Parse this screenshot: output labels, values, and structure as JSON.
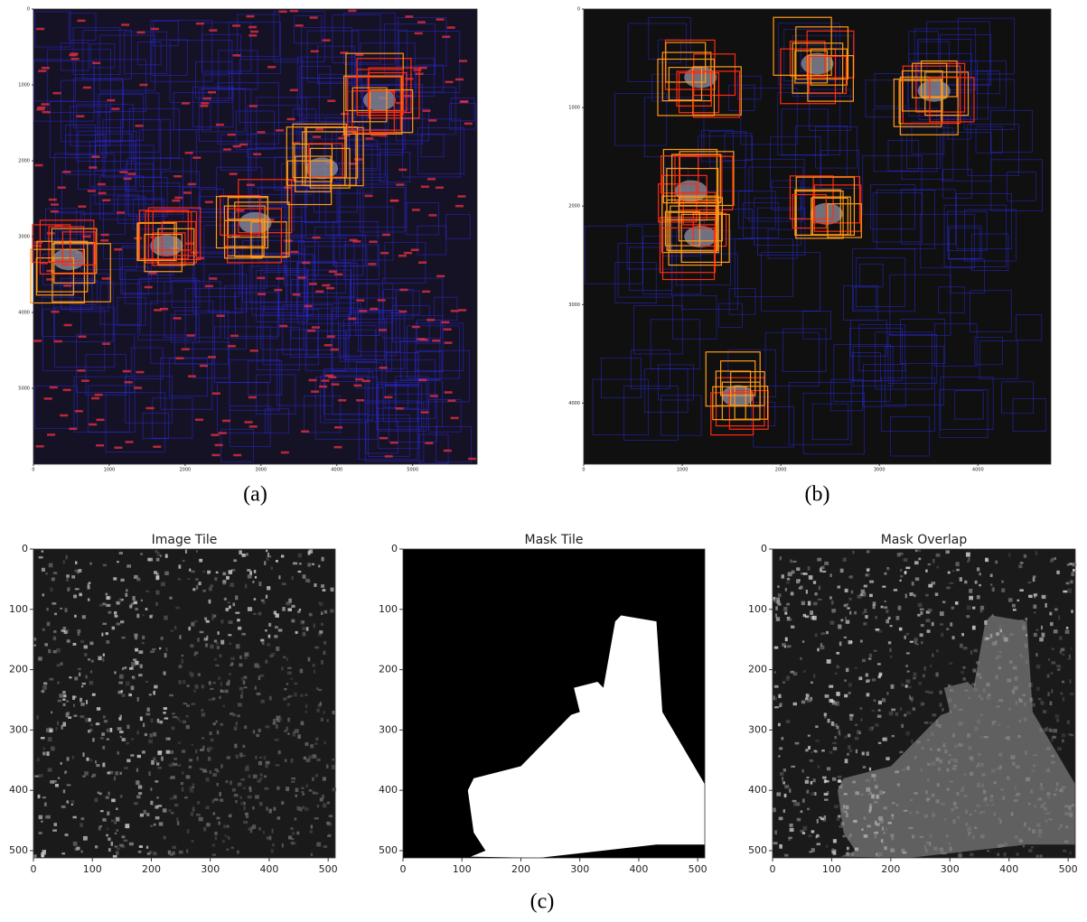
{
  "panels": [
    {
      "label": "(a)",
      "xlim": [
        0,
        5850
      ],
      "ylim": [
        0,
        6000
      ],
      "xticks": [
        0,
        1000,
        2000,
        3000,
        4000,
        5000
      ],
      "yticks": [
        0,
        1000,
        2000,
        3000,
        4000,
        5000
      ]
    },
    {
      "label": "(b)",
      "xlim": [
        0,
        4740
      ],
      "ylim": [
        0,
        4620
      ],
      "xticks": [
        0,
        1000,
        2000,
        3000,
        4000
      ],
      "yticks": [
        0,
        1000,
        2000,
        3000,
        4000
      ]
    }
  ],
  "tiles": [
    {
      "title": "Image Tile",
      "xlim": [
        0,
        512
      ],
      "ylim": [
        0,
        512
      ],
      "xticks": [
        0,
        100,
        200,
        300,
        400,
        500
      ],
      "yticks": [
        0,
        100,
        200,
        300,
        400,
        500
      ]
    },
    {
      "title": "Mask Tile",
      "xlim": [
        0,
        512
      ],
      "ylim": [
        0,
        512
      ],
      "xticks": [
        0,
        100,
        200,
        300,
        400,
        500
      ],
      "yticks": [
        0,
        100,
        200,
        300,
        400,
        500
      ]
    },
    {
      "title": "Mask Overlap",
      "xlim": [
        0,
        512
      ],
      "ylim": [
        0,
        512
      ],
      "xticks": [
        0,
        100,
        200,
        300,
        400,
        500
      ],
      "yticks": [
        0,
        100,
        200,
        300,
        400,
        500
      ]
    }
  ],
  "caption": "(c)"
}
